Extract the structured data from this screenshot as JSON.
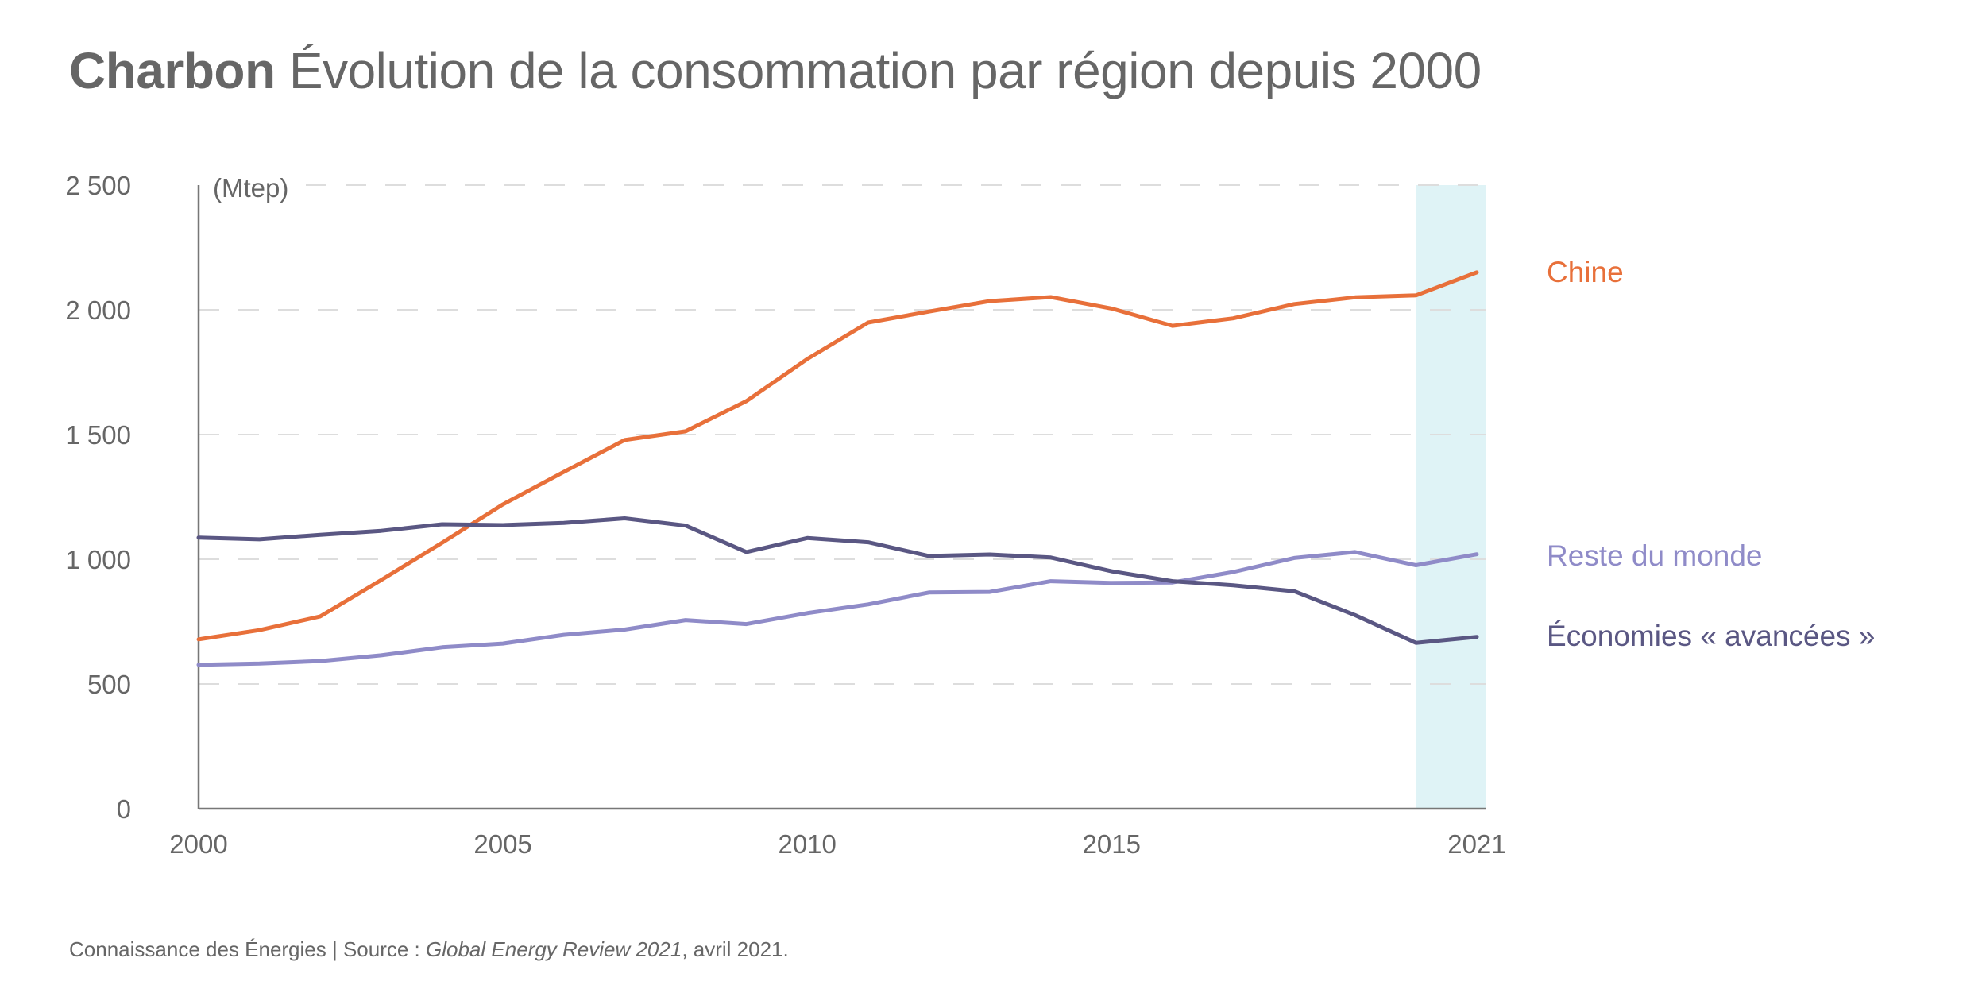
{
  "title": {
    "bold": "Charbon",
    "rest": "Évolution de la consommation par région depuis 2000"
  },
  "footer": {
    "prefix": "Connaissance des Énergies | Source : ",
    "source_italic": "Global Energy Review 2021",
    "suffix": ", avril 2021."
  },
  "colors": {
    "chine": "#E8703A",
    "reste": "#8F8BC8",
    "avancees": "#5A5783",
    "highlight": "#DFF3F6",
    "axis": "#777777",
    "grid": "#DDDDDD",
    "text": "#666666"
  },
  "chart_data": {
    "type": "line",
    "title": "Charbon Évolution de la consommation par région depuis 2000",
    "xlabel": "",
    "ylabel": "(Mtep)",
    "x": [
      2000,
      2001,
      2002,
      2003,
      2004,
      2005,
      2006,
      2007,
      2008,
      2009,
      2010,
      2011,
      2012,
      2013,
      2014,
      2015,
      2016,
      2017,
      2018,
      2019,
      2020,
      2021
    ],
    "xlim": [
      2000,
      2021
    ],
    "ylim": [
      0,
      2500
    ],
    "x_ticks": [
      2000,
      2005,
      2010,
      2015,
      2021
    ],
    "x_tick_labels": [
      "2000",
      "2005",
      "2010",
      "2015",
      "2021"
    ],
    "y_ticks": [
      0,
      500,
      1000,
      1500,
      2000,
      2500
    ],
    "y_tick_labels": [
      "0",
      "500",
      "1 000",
      "1 500",
      "2 000",
      "2 500"
    ],
    "grid": "horizontal-dashed",
    "highlight_range": [
      2020,
      2021
    ],
    "legend_placement": "right (inline labels at line ends)",
    "series": [
      {
        "name": "Chine",
        "color_key": "chine",
        "values": [
          679,
          716,
          771,
          917,
          1066,
          1220,
          1350,
          1478,
          1513,
          1634,
          1803,
          1949,
          1993,
          2035,
          2051,
          2005,
          1936,
          1966,
          2023,
          2050,
          2058,
          2150
        ]
      },
      {
        "name": "Reste du monde",
        "color_key": "reste",
        "values": [
          577,
          582,
          592,
          615,
          647,
          662,
          697,
          718,
          756,
          740,
          784,
          819,
          867,
          869,
          912,
          905,
          907,
          949,
          1005,
          1029,
          976,
          1020
        ]
      },
      {
        "name": "Économies « avancées »",
        "color_key": "avancees",
        "values": [
          1087,
          1080,
          1098,
          1114,
          1140,
          1137,
          1146,
          1164,
          1135,
          1029,
          1085,
          1068,
          1013,
          1019,
          1007,
          952,
          912,
          896,
          872,
          776,
          665,
          689
        ]
      }
    ],
    "legend": [
      {
        "label": "Chine",
        "anchor_value": 2150
      },
      {
        "label": "Reste du monde",
        "anchor_value": 1020
      },
      {
        "label": "Économies « avancées »",
        "anchor_value": 689
      }
    ]
  }
}
